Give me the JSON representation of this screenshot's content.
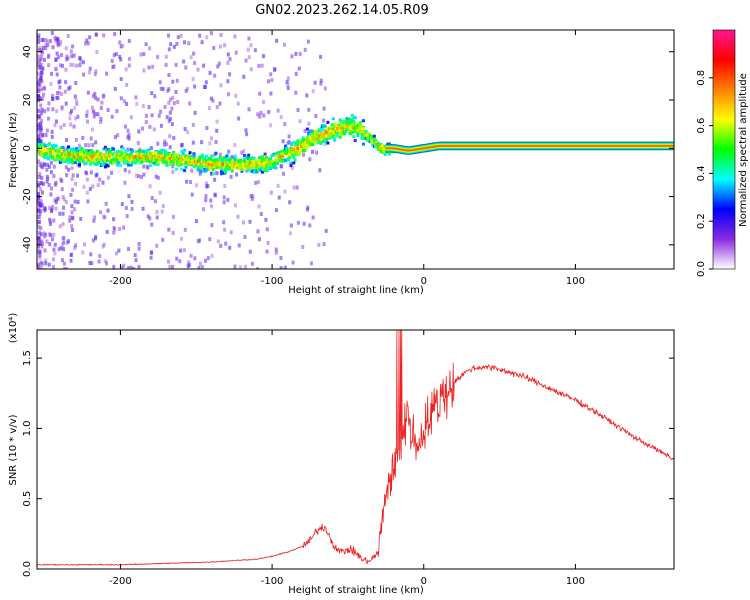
{
  "figure": {
    "title": "GN02.2023.262.14.05.R09"
  },
  "chart_data": [
    {
      "type": "heatmap",
      "xlabel": "Height of straight line (km)",
      "ylabel": "Frequency (Hz)",
      "xlim": [
        -255,
        165
      ],
      "ylim": [
        -50,
        49
      ],
      "xticks": [
        -200,
        -100,
        0,
        100
      ],
      "yticks": [
        -40,
        -20,
        0,
        20,
        40
      ],
      "ridge": {
        "x": [
          -255,
          -240,
          -220,
          -200,
          -180,
          -160,
          -150,
          -140,
          -120,
          -105,
          -95,
          -85,
          -75,
          -65,
          -60,
          -55,
          -50,
          -45,
          -40,
          -35,
          -30,
          -25,
          -20,
          -10,
          0,
          10,
          30,
          60,
          100,
          130,
          165
        ],
        "hz": [
          0,
          -2,
          -3,
          -3,
          -3,
          -4,
          -5,
          -6,
          -6,
          -6,
          -3,
          0,
          4,
          7,
          8,
          9,
          10,
          9,
          7,
          4,
          1,
          0,
          0,
          -1,
          0,
          1,
          1,
          1,
          1,
          1,
          1
        ]
      },
      "colorbar": {
        "label": "Normalized spectral amplitude",
        "range": [
          0,
          1
        ],
        "ticks": [
          0.0,
          0.2,
          0.4,
          0.6,
          0.8
        ],
        "colormap": [
          "#ffffff",
          "#8a2be2",
          "#0000ff",
          "#00ffff",
          "#00ff00",
          "#ffff00",
          "#ff8000",
          "#ff0000",
          "#ff1493"
        ]
      }
    },
    {
      "type": "line",
      "xlabel": "Height of straight line (km)",
      "ylabel": "SNR (10 * v/v)",
      "y_multiplier": "(x10⁴)",
      "xlim": [
        -255,
        165
      ],
      "ylim": [
        0,
        1.7
      ],
      "xticks": [
        -200,
        -100,
        0,
        100
      ],
      "yticks": [
        "0.0",
        "0.5",
        "1.0",
        "1.5"
      ],
      "color": "#ee2222",
      "series": [
        {
          "x": [
            -255,
            -230,
            -200,
            -170,
            -140,
            -110,
            -100,
            -90,
            -80,
            -75,
            -70,
            -65,
            -60,
            -55,
            -50,
            -45,
            -40,
            -35,
            -30,
            -25,
            -20,
            -15,
            -10,
            -5,
            0,
            5,
            10,
            20,
            30,
            40,
            50,
            60,
            70,
            80,
            90,
            100,
            110,
            120,
            130,
            140,
            150,
            165
          ],
          "y": [
            0.03,
            0.03,
            0.03,
            0.04,
            0.05,
            0.07,
            0.09,
            0.12,
            0.16,
            0.2,
            0.28,
            0.3,
            0.18,
            0.12,
            0.14,
            0.12,
            0.06,
            0.06,
            0.12,
            0.55,
            0.7,
            0.9,
            1.1,
            0.85,
            1.0,
            1.1,
            1.2,
            1.33,
            1.42,
            1.44,
            1.42,
            1.39,
            1.35,
            1.3,
            1.25,
            1.2,
            1.14,
            1.07,
            1.0,
            0.93,
            0.87,
            0.78
          ]
        }
      ]
    }
  ]
}
